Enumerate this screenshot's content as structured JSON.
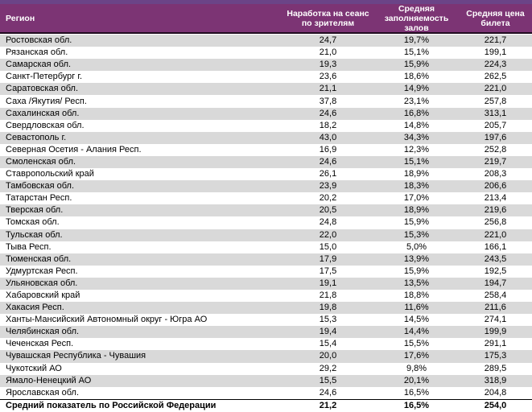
{
  "chart_data": {
    "type": "table",
    "columns": [
      "Регион",
      "Наработка на сеанс по зрителям",
      "Средняя заполняемость залов",
      "Средняя цена билета"
    ],
    "rows": [
      [
        "Ростовская обл.",
        "24,7",
        "19,7%",
        "221,7"
      ],
      [
        "Рязанская обл.",
        "21,0",
        "15,1%",
        "199,1"
      ],
      [
        "Самарская обл.",
        "19,3",
        "15,9%",
        "224,3"
      ],
      [
        "Санкт-Петербург г.",
        "23,6",
        "18,6%",
        "262,5"
      ],
      [
        "Саратовская обл.",
        "21,1",
        "14,9%",
        "221,0"
      ],
      [
        "Саха /Якутия/ Респ.",
        "37,8",
        "23,1%",
        "257,8"
      ],
      [
        "Сахалинская обл.",
        "24,6",
        "16,8%",
        "313,1"
      ],
      [
        "Свердловская обл.",
        "18,2",
        "14,8%",
        "205,7"
      ],
      [
        "Севастополь г.",
        "43,0",
        "34,3%",
        "197,6"
      ],
      [
        "Северная Осетия - Алания Респ.",
        "16,9",
        "12,3%",
        "252,8"
      ],
      [
        "Смоленская обл.",
        "24,6",
        "15,1%",
        "219,7"
      ],
      [
        "Ставропольский край",
        "26,1",
        "18,9%",
        "208,3"
      ],
      [
        "Тамбовская обл.",
        "23,9",
        "18,3%",
        "206,6"
      ],
      [
        "Татарстан Респ.",
        "20,2",
        "17,0%",
        "213,4"
      ],
      [
        "Тверская обл.",
        "20,5",
        "18,9%",
        "219,6"
      ],
      [
        "Томская обл.",
        "24,8",
        "15,9%",
        "256,8"
      ],
      [
        "Тульская обл.",
        "22,0",
        "15,3%",
        "221,0"
      ],
      [
        "Тыва Респ.",
        "15,0",
        "5,0%",
        "166,1"
      ],
      [
        "Тюменская обл.",
        "17,9",
        "13,9%",
        "243,5"
      ],
      [
        "Удмуртская Респ.",
        "17,5",
        "15,9%",
        "192,5"
      ],
      [
        "Ульяновская обл.",
        "19,1",
        "13,5%",
        "194,7"
      ],
      [
        "Хабаровский край",
        "21,8",
        "18,8%",
        "258,4"
      ],
      [
        "Хакасия Респ.",
        "19,8",
        "11,6%",
        "211,6"
      ],
      [
        "Ханты-Мансийский Автономный округ - Югра АО",
        "15,3",
        "14,5%",
        "274,1"
      ],
      [
        "Челябинская обл.",
        "19,4",
        "14,4%",
        "199,9"
      ],
      [
        "Чеченская Респ.",
        "15,4",
        "15,5%",
        "291,1"
      ],
      [
        "Чувашская Республика - Чувашия",
        "20,0",
        "17,6%",
        "175,3"
      ],
      [
        "Чукотский АО",
        "29,2",
        "9,8%",
        "289,5"
      ],
      [
        "Ямало-Ненецкий АО",
        "15,5",
        "20,1%",
        "318,9"
      ],
      [
        "Ярославская обл.",
        "24,6",
        "16,5%",
        "204,8"
      ]
    ],
    "summary_row": [
      "Средний показатель по Российской Федерации",
      "21,2",
      "16,5%",
      "254,0"
    ],
    "layout": {
      "striped": true,
      "first_row_shaded": true,
      "value_alignment": "center"
    }
  },
  "colors": {
    "header_bg": "#7C3474",
    "header_top_band": "#6B4487",
    "header_border": "#200A1F",
    "stripe": "#D9D9D9",
    "row_bg": "#FFFFFF",
    "text": "#000000",
    "header_text": "#FFFFFF",
    "summary_border": "#000000"
  }
}
